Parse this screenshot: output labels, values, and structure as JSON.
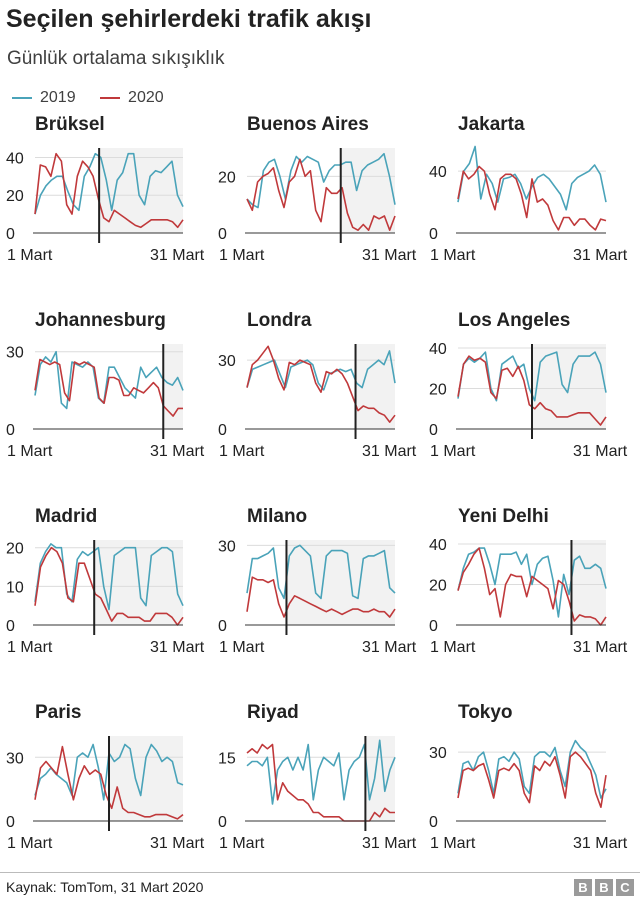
{
  "title": "Seçilen şehirlerdeki trafik akışı",
  "subtitle": "Günlük ortalama sıkışıklık",
  "legend": [
    {
      "label": "2019",
      "color": "#4aa3b9"
    },
    {
      "label": "2020",
      "color": "#c0393b"
    }
  ],
  "source": "Kaynak: TomTom, 31 Mart 2020",
  "logo": [
    "B",
    "B",
    "C"
  ],
  "chart_data": [
    {
      "type": "line",
      "title": "Brüksel",
      "x_range": [
        1,
        31
      ],
      "ylim": [
        0,
        45
      ],
      "yticks": [
        0,
        20,
        40
      ],
      "xtick_labels": [
        "1 Mart",
        "31 Mart"
      ],
      "marker_day": 14,
      "series": [
        {
          "name": "2019",
          "values": [
            10,
            20,
            25,
            28,
            30,
            30,
            22,
            15,
            12,
            30,
            35,
            42,
            40,
            28,
            12,
            28,
            32,
            42,
            42,
            20,
            15,
            30,
            33,
            32,
            35,
            38,
            20,
            14
          ]
        },
        {
          "name": "2020",
          "values": [
            10,
            36,
            35,
            30,
            42,
            38,
            15,
            10,
            30,
            38,
            35,
            30,
            18,
            8,
            6,
            12,
            10,
            8,
            6,
            4,
            3,
            5,
            7,
            7,
            7,
            7,
            6,
            3,
            7
          ]
        }
      ]
    },
    {
      "type": "line",
      "title": "Buenos Aires",
      "x_range": [
        1,
        31
      ],
      "ylim": [
        0,
        30
      ],
      "yticks": [
        0,
        20
      ],
      "xtick_labels": [
        "1 Mart",
        "31 Mart"
      ],
      "marker_day": 20,
      "series": [
        {
          "name": "2019",
          "values": [
            12,
            10,
            9,
            22,
            25,
            26,
            20,
            12,
            22,
            27,
            25,
            27,
            26,
            25,
            18,
            22,
            24,
            24,
            25,
            25,
            15,
            22,
            24,
            25,
            26,
            28,
            20,
            10
          ]
        },
        {
          "name": "2020",
          "values": [
            12,
            8,
            18,
            20,
            21,
            23,
            15,
            9,
            18,
            20,
            26,
            20,
            22,
            8,
            4,
            16,
            14,
            14,
            16,
            7,
            2,
            1,
            3,
            1,
            6,
            5,
            6,
            1,
            6
          ]
        }
      ]
    },
    {
      "type": "line",
      "title": "Jakarta",
      "x_range": [
        1,
        31
      ],
      "ylim": [
        0,
        55
      ],
      "yticks": [
        0,
        40
      ],
      "xtick_labels": [
        "1 Mart",
        "31 Mart"
      ],
      "marker_day": null,
      "series": [
        {
          "name": "2019",
          "values": [
            20,
            40,
            45,
            56,
            22,
            38,
            32,
            20,
            35,
            36,
            38,
            32,
            22,
            30,
            36,
            38,
            35,
            30,
            25,
            15,
            32,
            36,
            38,
            40,
            44,
            38,
            20
          ]
        },
        {
          "name": "2020",
          "values": [
            22,
            40,
            35,
            38,
            43,
            40,
            25,
            15,
            35,
            38,
            38,
            35,
            25,
            10,
            35,
            20,
            22,
            18,
            8,
            2,
            10,
            10,
            5,
            9,
            9,
            5,
            2,
            9,
            8
          ]
        }
      ]
    },
    {
      "type": "line",
      "title": "Johannesburg",
      "x_range": [
        1,
        31
      ],
      "ylim": [
        0,
        33
      ],
      "yticks": [
        0,
        30
      ],
      "xtick_labels": [
        "1 Mart",
        "31 Mart"
      ],
      "marker_day": 27,
      "series": [
        {
          "name": "2019",
          "values": [
            13,
            25,
            28,
            26,
            30,
            10,
            8,
            26,
            25,
            24,
            26,
            24,
            12,
            10,
            24,
            24,
            20,
            16,
            14,
            12,
            24,
            20,
            22,
            24,
            20,
            18,
            17,
            20,
            15
          ]
        },
        {
          "name": "2020",
          "values": [
            15,
            27,
            26,
            25,
            26,
            25,
            14,
            11,
            26,
            25,
            26,
            25,
            24,
            12,
            10,
            20,
            20,
            19,
            13,
            13,
            16,
            15,
            14,
            16,
            18,
            16,
            9,
            7,
            5,
            8,
            8
          ]
        }
      ]
    },
    {
      "type": "line",
      "title": "Londra",
      "x_range": [
        1,
        31
      ],
      "ylim": [
        0,
        37
      ],
      "yticks": [
        0,
        30
      ],
      "xtick_labels": [
        "1 Mart",
        "31 Mart"
      ],
      "marker_day": 23,
      "series": [
        {
          "name": "2019",
          "values": [
            18,
            26,
            27,
            28,
            29,
            30,
            24,
            18,
            27,
            28,
            29,
            30,
            28,
            20,
            17,
            24,
            25,
            26,
            25,
            26,
            20,
            18,
            26,
            28,
            30,
            28,
            34,
            20
          ]
        },
        {
          "name": "2020",
          "values": [
            18,
            28,
            30,
            33,
            36,
            30,
            22,
            17,
            29,
            28,
            30,
            29,
            28,
            20,
            16,
            25,
            24,
            26,
            24,
            20,
            14,
            8,
            10,
            9,
            9,
            7,
            6,
            3,
            6
          ]
        }
      ]
    },
    {
      "type": "line",
      "title": "Los Angeles",
      "x_range": [
        1,
        31
      ],
      "ylim": [
        0,
        42
      ],
      "yticks": [
        0,
        20,
        40
      ],
      "xtick_labels": [
        "1 Mart",
        "31 Mart"
      ],
      "marker_day": 16,
      "series": [
        {
          "name": "2019",
          "values": [
            15,
            32,
            35,
            33,
            35,
            38,
            20,
            14,
            32,
            34,
            36,
            30,
            32,
            20,
            14,
            33,
            36,
            37,
            38,
            22,
            18,
            32,
            36,
            36,
            36,
            38,
            32,
            18
          ]
        },
        {
          "name": "2020",
          "values": [
            16,
            32,
            36,
            34,
            35,
            33,
            18,
            15,
            29,
            30,
            26,
            31,
            24,
            12,
            10,
            13,
            10,
            9,
            6,
            6,
            6,
            7,
            8,
            8,
            8,
            5,
            2,
            6
          ]
        }
      ]
    },
    {
      "type": "line",
      "title": "Madrid",
      "x_range": [
        1,
        31
      ],
      "ylim": [
        0,
        22
      ],
      "yticks": [
        0,
        10,
        20
      ],
      "xtick_labels": [
        "1 Mart",
        "31 Mart"
      ],
      "marker_day": 13,
      "series": [
        {
          "name": "2019",
          "values": [
            6,
            16,
            19,
            21,
            20,
            20,
            8,
            6,
            17,
            19,
            18,
            19,
            20,
            10,
            4,
            18,
            19,
            20,
            20,
            20,
            7,
            5,
            18,
            19,
            20,
            20,
            19,
            8,
            5
          ]
        },
        {
          "name": "2020",
          "values": [
            5,
            15,
            18,
            20,
            19,
            16,
            7,
            6,
            16,
            16,
            12,
            8,
            7,
            4,
            1,
            3,
            3,
            2,
            2,
            2,
            1,
            1,
            3,
            3,
            3,
            2,
            0,
            2
          ]
        }
      ]
    },
    {
      "type": "line",
      "title": "Milano",
      "x_range": [
        1,
        31
      ],
      "ylim": [
        0,
        32
      ],
      "yticks": [
        0,
        30
      ],
      "xtick_labels": [
        "1 Mart",
        "31 Mart"
      ],
      "marker_day": 9,
      "series": [
        {
          "name": "2019",
          "values": [
            12,
            25,
            25,
            26,
            27,
            29,
            14,
            10,
            26,
            29,
            30,
            28,
            26,
            12,
            10,
            26,
            28,
            28,
            28,
            27,
            11,
            10,
            25,
            26,
            26,
            27,
            28,
            14,
            12
          ]
        },
        {
          "name": "2020",
          "values": [
            5,
            18,
            17,
            17,
            16,
            17,
            8,
            3,
            8,
            11,
            10,
            9,
            8,
            7,
            6,
            5,
            6,
            5,
            4,
            5,
            6,
            6,
            5,
            5,
            6,
            5,
            5,
            3,
            6
          ]
        }
      ]
    },
    {
      "type": "line",
      "title": "Yeni Delhi",
      "x_range": [
        1,
        31
      ],
      "ylim": [
        0,
        42
      ],
      "yticks": [
        0,
        20,
        40
      ],
      "xtick_labels": [
        "1 Mart",
        "31 Mart"
      ],
      "marker_day": 24,
      "series": [
        {
          "name": "2019",
          "values": [
            17,
            28,
            35,
            36,
            38,
            38,
            30,
            20,
            35,
            35,
            35,
            36,
            30,
            35,
            20,
            30,
            33,
            34,
            22,
            4,
            25,
            15,
            32,
            34,
            28,
            28,
            30,
            28,
            18
          ]
        },
        {
          "name": "2020",
          "values": [
            17,
            26,
            30,
            35,
            38,
            28,
            15,
            18,
            4,
            20,
            25,
            24,
            24,
            14,
            24,
            22,
            20,
            18,
            8,
            22,
            20,
            12,
            2,
            5,
            4,
            4,
            3,
            0,
            4
          ]
        }
      ]
    },
    {
      "type": "line",
      "title": "Paris",
      "x_range": [
        1,
        31
      ],
      "ylim": [
        0,
        40
      ],
      "yticks": [
        0,
        30
      ],
      "xtick_labels": [
        "1 Mart",
        "31 Mart"
      ],
      "marker_day": 16,
      "series": [
        {
          "name": "2019",
          "values": [
            12,
            20,
            22,
            25,
            22,
            20,
            18,
            12,
            30,
            32,
            30,
            36,
            25,
            10,
            32,
            28,
            30,
            36,
            34,
            20,
            12,
            30,
            36,
            33,
            28,
            30,
            28,
            18,
            17
          ]
        },
        {
          "name": "2020",
          "values": [
            10,
            25,
            28,
            25,
            22,
            35,
            22,
            10,
            20,
            26,
            22,
            24,
            22,
            12,
            6,
            16,
            6,
            4,
            4,
            3,
            2,
            2,
            3,
            3,
            3,
            2,
            1,
            3
          ]
        }
      ]
    },
    {
      "type": "line",
      "title": "Riyad",
      "x_range": [
        1,
        31
      ],
      "ylim": [
        0,
        20
      ],
      "yticks": [
        0,
        15
      ],
      "xtick_labels": [
        "1 Mart",
        "31 Mart"
      ],
      "marker_day": 25,
      "series": [
        {
          "name": "2019",
          "values": [
            13,
            14,
            14,
            13,
            15,
            4,
            12,
            14,
            15,
            12,
            15,
            12,
            18,
            5,
            12,
            15,
            14,
            13,
            16,
            5,
            12,
            14,
            15,
            18,
            5,
            10,
            19,
            7,
            12,
            15
          ]
        },
        {
          "name": "2020",
          "values": [
            16,
            17,
            16,
            18,
            17,
            18,
            5,
            9,
            7,
            6,
            5,
            5,
            4,
            2,
            2,
            1,
            1,
            1,
            1,
            0,
            0,
            0,
            0,
            0,
            0,
            2,
            1,
            3,
            2,
            2
          ]
        }
      ]
    },
    {
      "type": "line",
      "title": "Tokyo",
      "x_range": [
        1,
        31
      ],
      "ylim": [
        0,
        37
      ],
      "yticks": [
        0,
        30
      ],
      "xtick_labels": [
        "1 Mart",
        "31 Mart"
      ],
      "marker_day": null,
      "series": [
        {
          "name": "2019",
          "values": [
            12,
            25,
            26,
            22,
            28,
            30,
            22,
            12,
            27,
            28,
            26,
            30,
            27,
            15,
            12,
            28,
            30,
            30,
            28,
            32,
            22,
            15,
            30,
            35,
            32,
            30,
            25,
            20,
            10,
            14
          ]
        },
        {
          "name": "2020",
          "values": [
            10,
            22,
            23,
            22,
            24,
            25,
            18,
            10,
            22,
            23,
            22,
            25,
            22,
            12,
            8,
            24,
            22,
            26,
            24,
            28,
            20,
            10,
            28,
            30,
            28,
            25,
            22,
            12,
            6,
            20
          ]
        }
      ]
    }
  ]
}
